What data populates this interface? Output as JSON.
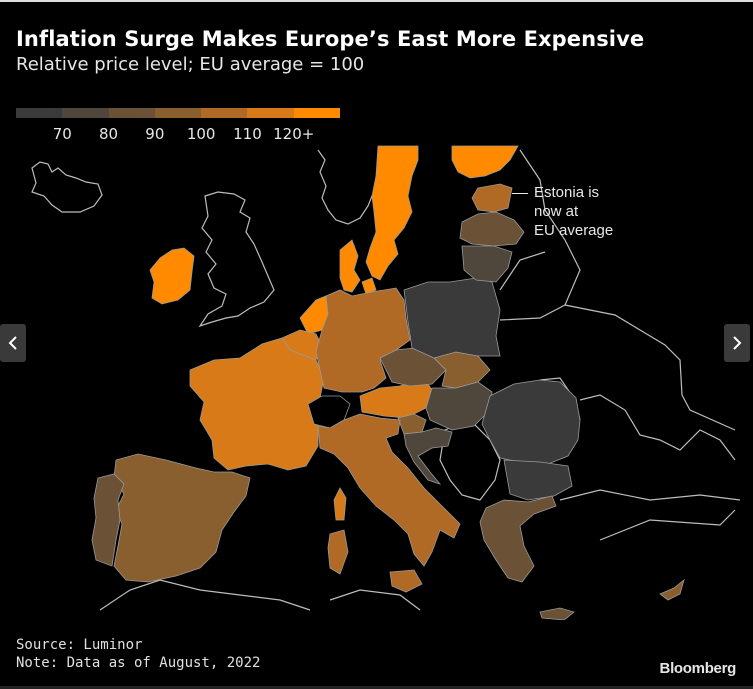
{
  "header": {
    "title": "Inflation Surge Makes Europe’s East More Expensive",
    "subtitle": "Relative price level; EU average = 100"
  },
  "legend": {
    "ticks": [
      "70",
      "80",
      "90",
      "100",
      "110",
      "120+"
    ],
    "colors": [
      "#3a3a3a",
      "#4f463c",
      "#6b5237",
      "#8a5f30",
      "#b06a25",
      "#d87a18",
      "#ff8a00"
    ]
  },
  "annotation": {
    "lines": [
      "Estonia is",
      "now at",
      "EU average"
    ]
  },
  "footer": {
    "source": "Source: Luminor",
    "note": "Note: Data as of August, 2022",
    "brand": "Bloomberg"
  },
  "nav": {
    "prev_icon": "chevron-left-icon",
    "next_icon": "chevron-right-icon"
  },
  "chart_data": {
    "type": "choropleth",
    "title": "Inflation Surge Makes Europe’s East More Expensive",
    "subtitle": "Relative price level; EU average = 100",
    "legend_bins": [
      {
        "label": "<70",
        "color": "#3a3a3a"
      },
      {
        "label": "70-80",
        "color": "#4f463c"
      },
      {
        "label": "80-90",
        "color": "#6b5237"
      },
      {
        "label": "90-100",
        "color": "#8a5f30"
      },
      {
        "label": "100-110",
        "color": "#b06a25"
      },
      {
        "label": "110-120",
        "color": "#d87a18"
      },
      {
        "label": "120+",
        "color": "#ff8a00"
      }
    ],
    "legend_placement": "top-left",
    "regions": [
      {
        "name": "Ireland",
        "bin": "120+"
      },
      {
        "name": "Sweden",
        "bin": "120+"
      },
      {
        "name": "Finland",
        "bin": "120+"
      },
      {
        "name": "Denmark",
        "bin": "120+"
      },
      {
        "name": "Netherlands",
        "bin": "120+"
      },
      {
        "name": "Luxembourg",
        "bin": "120+"
      },
      {
        "name": "France",
        "bin": "110-120"
      },
      {
        "name": "Belgium",
        "bin": "110-120"
      },
      {
        "name": "Austria",
        "bin": "110-120"
      },
      {
        "name": "Germany",
        "bin": "100-110"
      },
      {
        "name": "Italy",
        "bin": "100-110"
      },
      {
        "name": "Estonia",
        "bin": "100-110"
      },
      {
        "name": "Cyprus",
        "bin": "100-110"
      },
      {
        "name": "Spain",
        "bin": "90-100"
      },
      {
        "name": "Slovenia",
        "bin": "90-100"
      },
      {
        "name": "Slovakia",
        "bin": "90-100"
      },
      {
        "name": "Portugal",
        "bin": "80-90"
      },
      {
        "name": "Greece",
        "bin": "80-90"
      },
      {
        "name": "Czechia",
        "bin": "80-90"
      },
      {
        "name": "Latvia",
        "bin": "80-90"
      },
      {
        "name": "Lithuania",
        "bin": "70-80"
      },
      {
        "name": "Croatia",
        "bin": "70-80"
      },
      {
        "name": "Hungary",
        "bin": "70-80"
      },
      {
        "name": "Poland",
        "bin": "<70"
      },
      {
        "name": "Romania",
        "bin": "<70"
      },
      {
        "name": "Bulgaria",
        "bin": "<70"
      }
    ],
    "annotations": [
      "Estonia is now at EU average"
    ],
    "source": "Luminor",
    "note": "Data as of August, 2022"
  }
}
